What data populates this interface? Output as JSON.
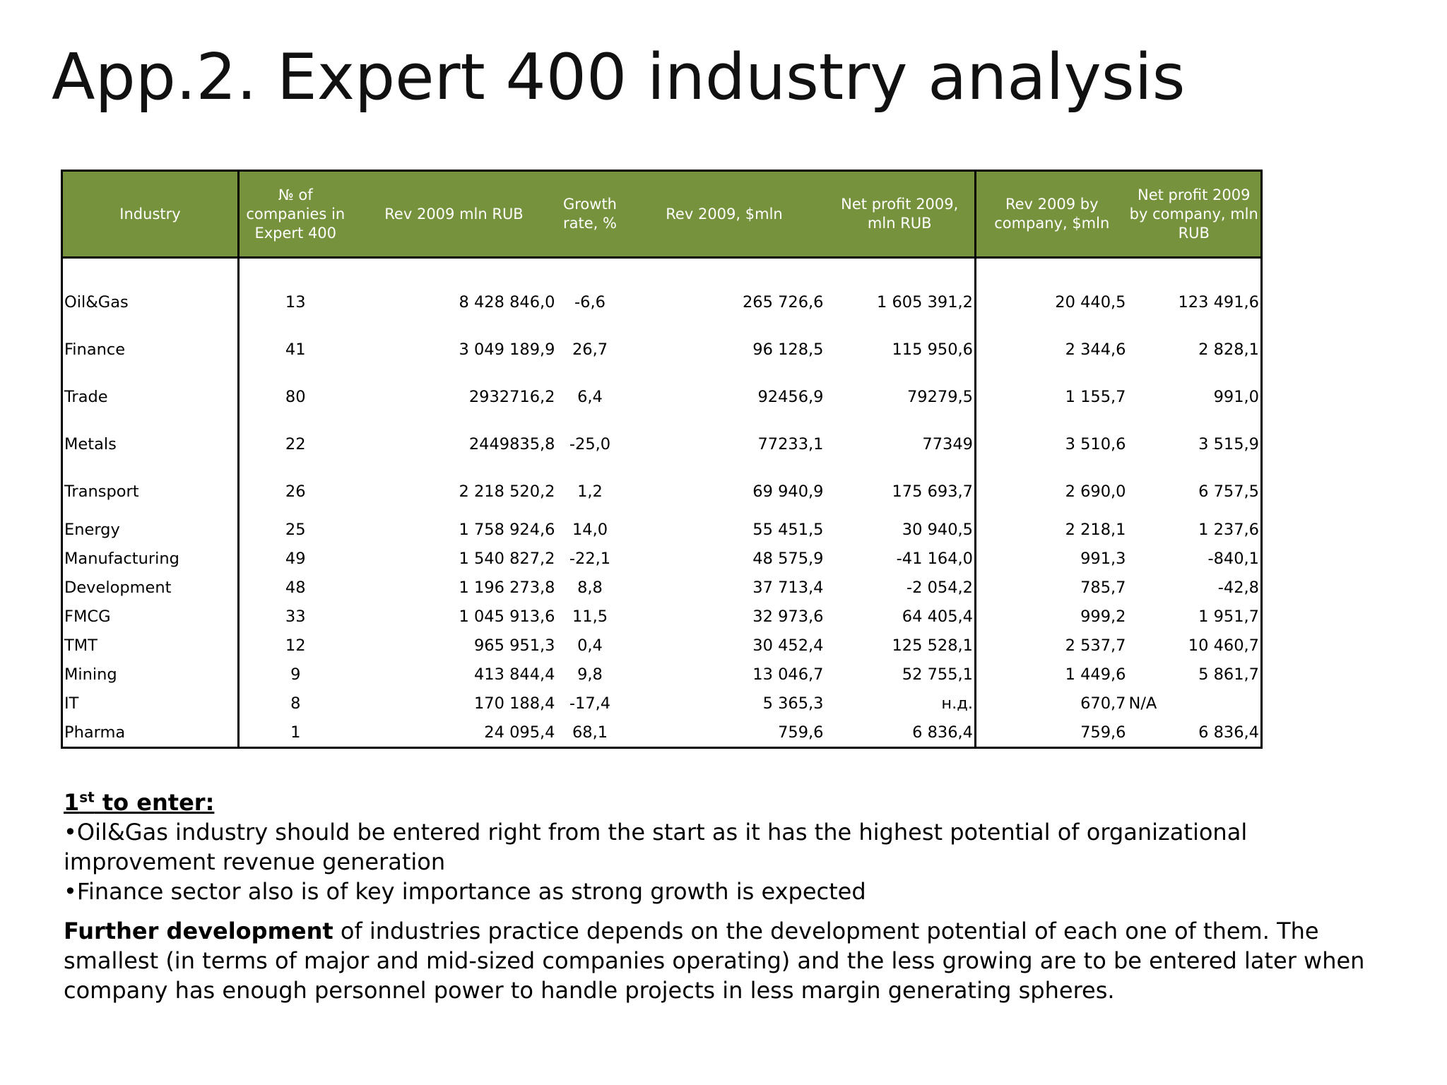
{
  "title": "App.2. Expert 400 industry analysis",
  "table": {
    "headers": [
      "Industry",
      "№ of companies in Expert 400",
      "Rev 2009 mln RUB",
      "Growth rate, %",
      "Rev 2009, $mln",
      "Net profit 2009, mln RUB",
      "Rev 2009 by company, $mln",
      "Net profit 2009 by company, mln RUB"
    ],
    "rows": [
      [
        "Oil&Gas",
        "13",
        "8 428 846,0",
        "-6,6",
        "265 726,6",
        "1 605 391,2",
        "20 440,5",
        "123 491,6"
      ],
      [
        "Finance",
        "41",
        "3 049 189,9",
        "26,7",
        "96 128,5",
        "115 950,6",
        "2 344,6",
        "2 828,1"
      ],
      [
        "Trade",
        "80",
        "2932716,2",
        "6,4",
        "92456,9",
        "79279,5",
        "1 155,7",
        "991,0"
      ],
      [
        "Metals",
        "22",
        "2449835,8",
        "-25,0",
        "77233,1",
        "77349",
        "3 510,6",
        "3 515,9"
      ],
      [
        "Transport",
        "26",
        "2 218 520,2",
        "1,2",
        "69 940,9",
        "175 693,7",
        "2 690,0",
        "6 757,5"
      ],
      [
        "Energy",
        "25",
        "1 758 924,6",
        "14,0",
        "55 451,5",
        "30 940,5",
        "2 218,1",
        "1 237,6"
      ],
      [
        "Manufacturing",
        "49",
        "1 540 827,2",
        "-22,1",
        "48 575,9",
        "-41 164,0",
        "991,3",
        "-840,1"
      ],
      [
        "Development",
        "48",
        "1 196 273,8",
        "8,8",
        "37 713,4",
        "-2 054,2",
        "785,7",
        "-42,8"
      ],
      [
        "FMCG",
        "33",
        "1 045 913,6",
        "11,5",
        "32 973,6",
        "64 405,4",
        "999,2",
        "1 951,7"
      ],
      [
        "TMT",
        "12",
        "965 951,3",
        "0,4",
        "30 452,4",
        "125 528,1",
        "2 537,7",
        "10 460,7"
      ],
      [
        "Mining",
        "9",
        "413 844,4",
        "9,8",
        "13 046,7",
        "52 755,1",
        "1 449,6",
        "5 861,7"
      ],
      [
        "IT",
        "8",
        "170 188,4",
        "-17,4",
        "5 365,3",
        "н.д.",
        "670,7",
        "N/A"
      ],
      [
        "Pharma",
        "1",
        "24 095,4",
        "68,1",
        "759,6",
        "6 836,4",
        "759,6",
        "6 836,4"
      ]
    ]
  },
  "notes": {
    "enter_number": "1",
    "enter_sup": "st",
    "enter_rest": " to enter:",
    "bullet1": "•Oil&Gas industry should be entered right from the start as it has the highest potential of organizational improvement revenue generation",
    "bullet2": "•Finance sector also is of key importance as strong growth is expected",
    "further_bold": "Further development",
    "further_text": " of industries practice depends on the development potential of each one of them. The smallest (in terms of major and mid-sized companies operating) and the less growing are to be entered later when company has enough personnel power to handle projects in less margin generating spheres."
  }
}
